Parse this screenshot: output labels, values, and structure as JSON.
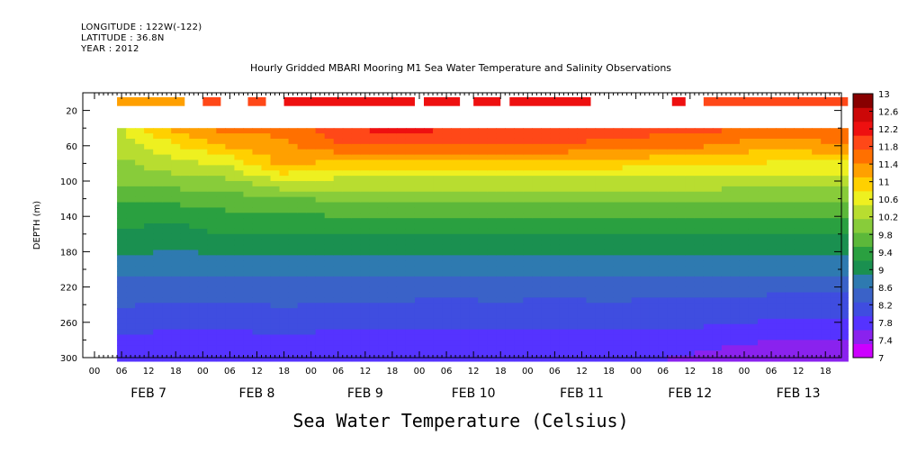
{
  "meta": {
    "longitude": "LONGITUDE : 122W(-122)",
    "latitude": "LATITUDE : 36.8N",
    "year": "YEAR : 2012"
  },
  "chart_data": {
    "type": "heatmap",
    "title": "Hourly Gridded MBARI Mooring M1 Sea Water Temperature and Salinity Observations",
    "colorbar_title": "Sea Water Temperature (Celsius)",
    "ylabel": "DEPTH (m)",
    "ylim": [
      300,
      0
    ],
    "y_ticks": [
      20,
      60,
      100,
      140,
      180,
      220,
      260,
      300
    ],
    "x_hour_labels": [
      "00",
      "06",
      "12",
      "18",
      "00",
      "06",
      "12",
      "18",
      "00",
      "06",
      "12",
      "18",
      "00",
      "06",
      "12",
      "18",
      "00",
      "06",
      "12",
      "18",
      "00",
      "06",
      "12",
      "18",
      "00",
      "06",
      "12",
      "18"
    ],
    "day_labels": [
      "FEB 7",
      "FEB 8",
      "FEB 9",
      "FEB 10",
      "FEB 11",
      "FEB 12",
      "FEB 13"
    ],
    "colorbar_levels": [
      "13",
      "12.6",
      "12.2",
      "11.8",
      "11.4",
      "11",
      "10.6",
      "10.2",
      "9.8",
      "9.4",
      "9",
      "8.6",
      "8.2",
      "7.8",
      "7.4",
      "7"
    ],
    "data_start": "FEB 7 05:00",
    "data_end": "FEB 13 23:00",
    "depths": [
      10,
      40,
      60,
      80,
      100,
      120,
      140,
      160,
      180,
      200,
      220,
      240,
      260,
      280,
      300
    ],
    "profiles": [
      {
        "time": "FEB 7 06",
        "temps": [
          11.5,
          10.5,
          10.3,
          10.1,
          9.9,
          9.6,
          9.3,
          9.1,
          8.9,
          8.6,
          8.4,
          8.2,
          8.0,
          7.8,
          7.6
        ]
      },
      {
        "time": "FEB 7 18",
        "temps": [
          11.4,
          11.3,
          10.8,
          10.4,
          10.0,
          9.6,
          9.3,
          9.0,
          8.8,
          8.6,
          8.4,
          8.1,
          7.9,
          7.7,
          7.6
        ]
      },
      {
        "time": "FEB 8 06",
        "temps": [
          11.8,
          11.7,
          11.2,
          10.6,
          10.1,
          9.7,
          9.4,
          9.2,
          8.9,
          8.6,
          8.4,
          8.1,
          7.9,
          7.7,
          7.6
        ]
      },
      {
        "time": "FEB 8 18",
        "temps": [
          11.7,
          11.6,
          11.4,
          11.3,
          10.5,
          9.8,
          9.4,
          9.2,
          8.9,
          8.6,
          8.4,
          8.2,
          8.0,
          7.8,
          7.6
        ]
      },
      {
        "time": "FEB 9 06",
        "temps": [
          12.2,
          12.1,
          11.8,
          11.0,
          10.4,
          9.9,
          9.5,
          9.2,
          8.9,
          8.6,
          8.4,
          8.1,
          7.9,
          7.7,
          7.5
        ]
      },
      {
        "time": "FEB 9 18",
        "temps": [
          12.4,
          12.3,
          11.8,
          11.0,
          10.4,
          9.9,
          9.5,
          9.2,
          8.9,
          8.6,
          8.4,
          8.1,
          7.9,
          7.7,
          7.5
        ]
      },
      {
        "time": "FEB 10 06",
        "temps": [
          12.3,
          12.2,
          11.8,
          11.0,
          10.4,
          9.9,
          9.5,
          9.2,
          8.9,
          8.6,
          8.3,
          8.1,
          7.9,
          7.7,
          7.5
        ]
      },
      {
        "time": "FEB 10 18",
        "temps": [
          12.2,
          12.1,
          11.8,
          11.0,
          10.4,
          9.9,
          9.5,
          9.2,
          8.9,
          8.6,
          8.4,
          8.1,
          7.9,
          7.7,
          7.5
        ]
      },
      {
        "time": "FEB 11 06",
        "temps": [
          12.3,
          12.2,
          11.8,
          11.0,
          10.4,
          9.9,
          9.5,
          9.2,
          8.9,
          8.6,
          8.3,
          8.1,
          7.9,
          7.7,
          7.5
        ]
      },
      {
        "time": "FEB 11 18",
        "temps": [
          12.1,
          12.0,
          11.7,
          11.0,
          10.4,
          9.9,
          9.5,
          9.2,
          8.9,
          8.6,
          8.4,
          8.1,
          7.9,
          7.7,
          7.5
        ]
      },
      {
        "time": "FEB 12 06",
        "temps": [
          12.1,
          12.0,
          11.6,
          10.9,
          10.4,
          9.9,
          9.5,
          9.2,
          8.9,
          8.6,
          8.3,
          8.1,
          7.9,
          7.7,
          7.5
        ]
      },
      {
        "time": "FEB 12 18",
        "temps": [
          12.0,
          11.9,
          11.5,
          10.9,
          10.4,
          9.9,
          9.5,
          9.2,
          8.9,
          8.6,
          8.3,
          8.1,
          7.9,
          7.6,
          7.4
        ]
      },
      {
        "time": "FEB 13 06",
        "temps": [
          12.0,
          11.8,
          11.2,
          10.8,
          10.3,
          9.9,
          9.5,
          9.2,
          8.9,
          8.6,
          8.3,
          8.0,
          7.8,
          7.5,
          7.3
        ]
      },
      {
        "time": "FEB 13 18",
        "temps": [
          12.0,
          11.9,
          11.4,
          10.8,
          10.3,
          9.9,
          9.5,
          9.2,
          8.9,
          8.6,
          8.3,
          8.0,
          7.8,
          7.5,
          7.2
        ]
      }
    ],
    "surface_segments": [
      {
        "start": "FEB 7 05",
        "end": "FEB 7 20",
        "temp": 11.4
      },
      {
        "start": "FEB 8 00",
        "end": "FEB 8 04",
        "temp": 12.0
      },
      {
        "start": "FEB 8 10",
        "end": "FEB 8 14",
        "temp": 11.9
      },
      {
        "start": "FEB 8 18",
        "end": "FEB 9 23",
        "temp": 12.2
      },
      {
        "start": "FEB 10 01",
        "end": "FEB 10 09",
        "temp": 12.4
      },
      {
        "start": "FEB 10 12",
        "end": "FEB 10 18",
        "temp": 12.4
      },
      {
        "start": "FEB 10 20",
        "end": "FEB 11 14",
        "temp": 12.4
      },
      {
        "start": "FEB 12 08",
        "end": "FEB 12 11",
        "temp": 12.4
      },
      {
        "start": "FEB 12 15",
        "end": "FEB 13 23",
        "temp": 12.0
      }
    ],
    "colors": {
      "palette": [
        "#cc00ff",
        "#8a22ee",
        "#5533ff",
        "#3f4de0",
        "#3a62c8",
        "#2e7ab0",
        "#1a9050",
        "#2aa040",
        "#5cb83a",
        "#88cc3a",
        "#b8dd30",
        "#eef020",
        "#ffd000",
        "#ffa000",
        "#ff7000",
        "#ff4818",
        "#ee1010",
        "#cc0808",
        "#880000"
      ]
    }
  }
}
